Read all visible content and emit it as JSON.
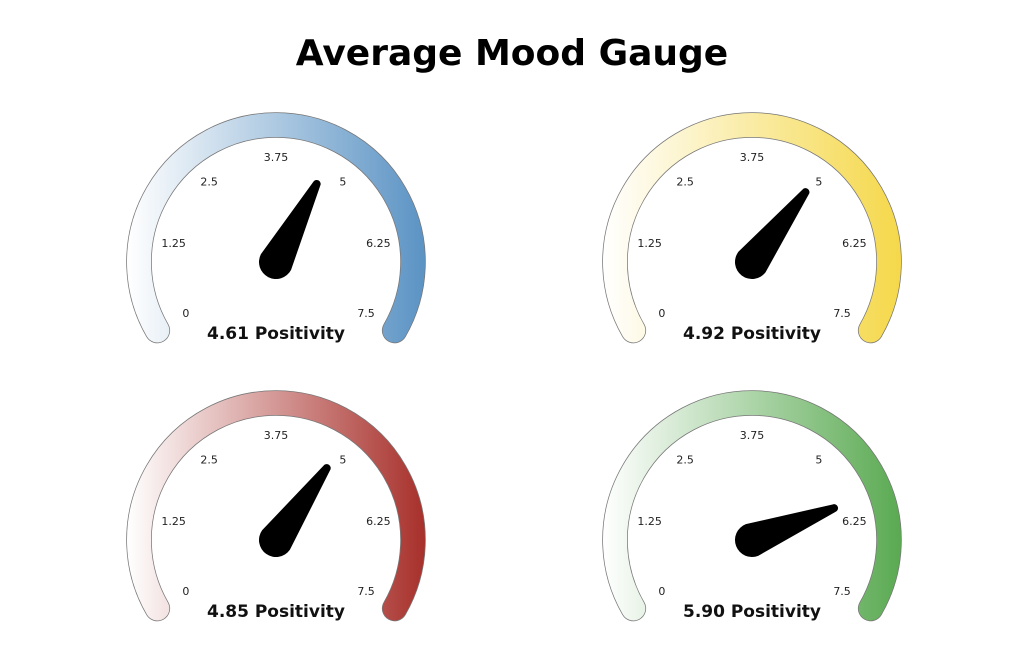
{
  "title": "Average Mood Gauge",
  "chart_data": [
    {
      "type": "gauge",
      "values": [
        4.61
      ],
      "value_labels": [
        "4.61 Positivity"
      ],
      "color": "#5b93c4",
      "ylim": [
        0,
        7.5
      ],
      "yticks": [
        0,
        1.25,
        2.5,
        3.75,
        5,
        6.25,
        7.5
      ]
    },
    {
      "type": "gauge",
      "values": [
        4.92
      ],
      "value_labels": [
        "4.92 Positivity"
      ],
      "color": "#f5d84a",
      "ylim": [
        0,
        7.5
      ],
      "yticks": [
        0,
        1.25,
        2.5,
        3.75,
        5,
        6.25,
        7.5
      ]
    },
    {
      "type": "gauge",
      "values": [
        4.85
      ],
      "value_labels": [
        "4.85 Positivity"
      ],
      "color": "#a8302b",
      "ylim": [
        0,
        7.5
      ],
      "yticks": [
        0,
        1.25,
        2.5,
        3.75,
        5,
        6.25,
        7.5
      ]
    },
    {
      "type": "gauge",
      "values": [
        5.9
      ],
      "value_labels": [
        "5.90 Positivity"
      ],
      "color": "#5aaa52",
      "ylim": [
        0,
        7.5
      ],
      "yticks": [
        0,
        1.25,
        2.5,
        3.75,
        5,
        6.25,
        7.5
      ]
    }
  ]
}
